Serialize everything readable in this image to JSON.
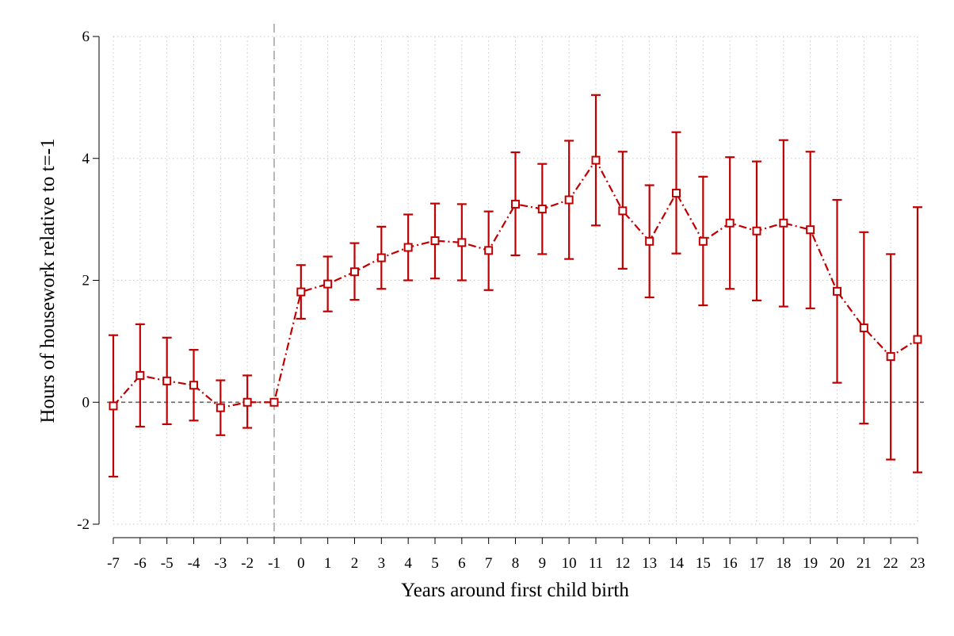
{
  "chart_data": {
    "type": "line",
    "title": "",
    "xlabel": "Years around first child birth",
    "ylabel": "Hours of housework relative to t=-1",
    "xlim": [
      -7,
      23
    ],
    "ylim": [
      -2,
      6
    ],
    "x_ticks": [
      -7,
      -6,
      -5,
      -4,
      -3,
      -2,
      -1,
      0,
      1,
      2,
      3,
      4,
      5,
      6,
      7,
      8,
      9,
      10,
      11,
      12,
      13,
      14,
      15,
      16,
      17,
      18,
      19,
      20,
      21,
      22,
      23
    ],
    "x_tick_labels": [
      "-7",
      "-6",
      "-5",
      "-4",
      "-3",
      "-2",
      "-1",
      "0",
      "1",
      "2",
      "3",
      "4",
      "5",
      "6",
      "7",
      "8",
      "9",
      "10",
      "11",
      "12",
      "13",
      "14",
      "15",
      "16",
      "17",
      "18",
      "19",
      "20",
      "21",
      "22",
      "23"
    ],
    "y_ticks": [
      -2,
      0,
      2,
      4,
      6
    ],
    "y_tick_labels": [
      "-2",
      "0",
      "2",
      "4",
      "6"
    ],
    "grid": true,
    "reference_lines": {
      "horizontal_y": 0,
      "vertical_x": -1
    },
    "color": "#C00000",
    "series": [
      {
        "marker": "hollow-square",
        "line_style": "dash-dot",
        "x": [
          -7,
          -6,
          -5,
          -4,
          -3,
          -2,
          -1,
          0,
          1,
          2,
          3,
          4,
          5,
          6,
          7,
          8,
          9,
          10,
          11,
          12,
          13,
          14,
          15,
          16,
          17,
          18,
          19,
          20,
          21,
          22,
          23
        ],
        "y": [
          -0.06,
          0.44,
          0.35,
          0.28,
          -0.09,
          0.0,
          0.0,
          1.81,
          1.94,
          2.14,
          2.37,
          2.54,
          2.65,
          2.62,
          2.49,
          3.25,
          3.17,
          3.32,
          3.97,
          3.14,
          2.64,
          3.43,
          2.64,
          2.94,
          2.81,
          2.94,
          2.83,
          1.82,
          1.22,
          0.75,
          1.03
        ],
        "lower": [
          -1.22,
          -0.4,
          -0.36,
          -0.3,
          -0.54,
          -0.42,
          0.0,
          1.37,
          1.49,
          1.68,
          1.86,
          2.0,
          2.03,
          2.0,
          1.84,
          2.41,
          2.43,
          2.35,
          2.9,
          2.19,
          1.72,
          2.44,
          1.59,
          1.86,
          1.67,
          1.57,
          1.54,
          0.32,
          -0.35,
          -0.94,
          -1.15
        ],
        "upper": [
          1.1,
          1.28,
          1.06,
          0.86,
          0.36,
          0.44,
          0.0,
          2.25,
          2.39,
          2.61,
          2.88,
          3.08,
          3.26,
          3.25,
          3.13,
          4.1,
          3.91,
          4.29,
          5.04,
          4.11,
          3.56,
          4.43,
          3.7,
          4.02,
          3.95,
          4.3,
          4.11,
          3.32,
          2.79,
          2.43,
          3.2
        ]
      }
    ]
  }
}
